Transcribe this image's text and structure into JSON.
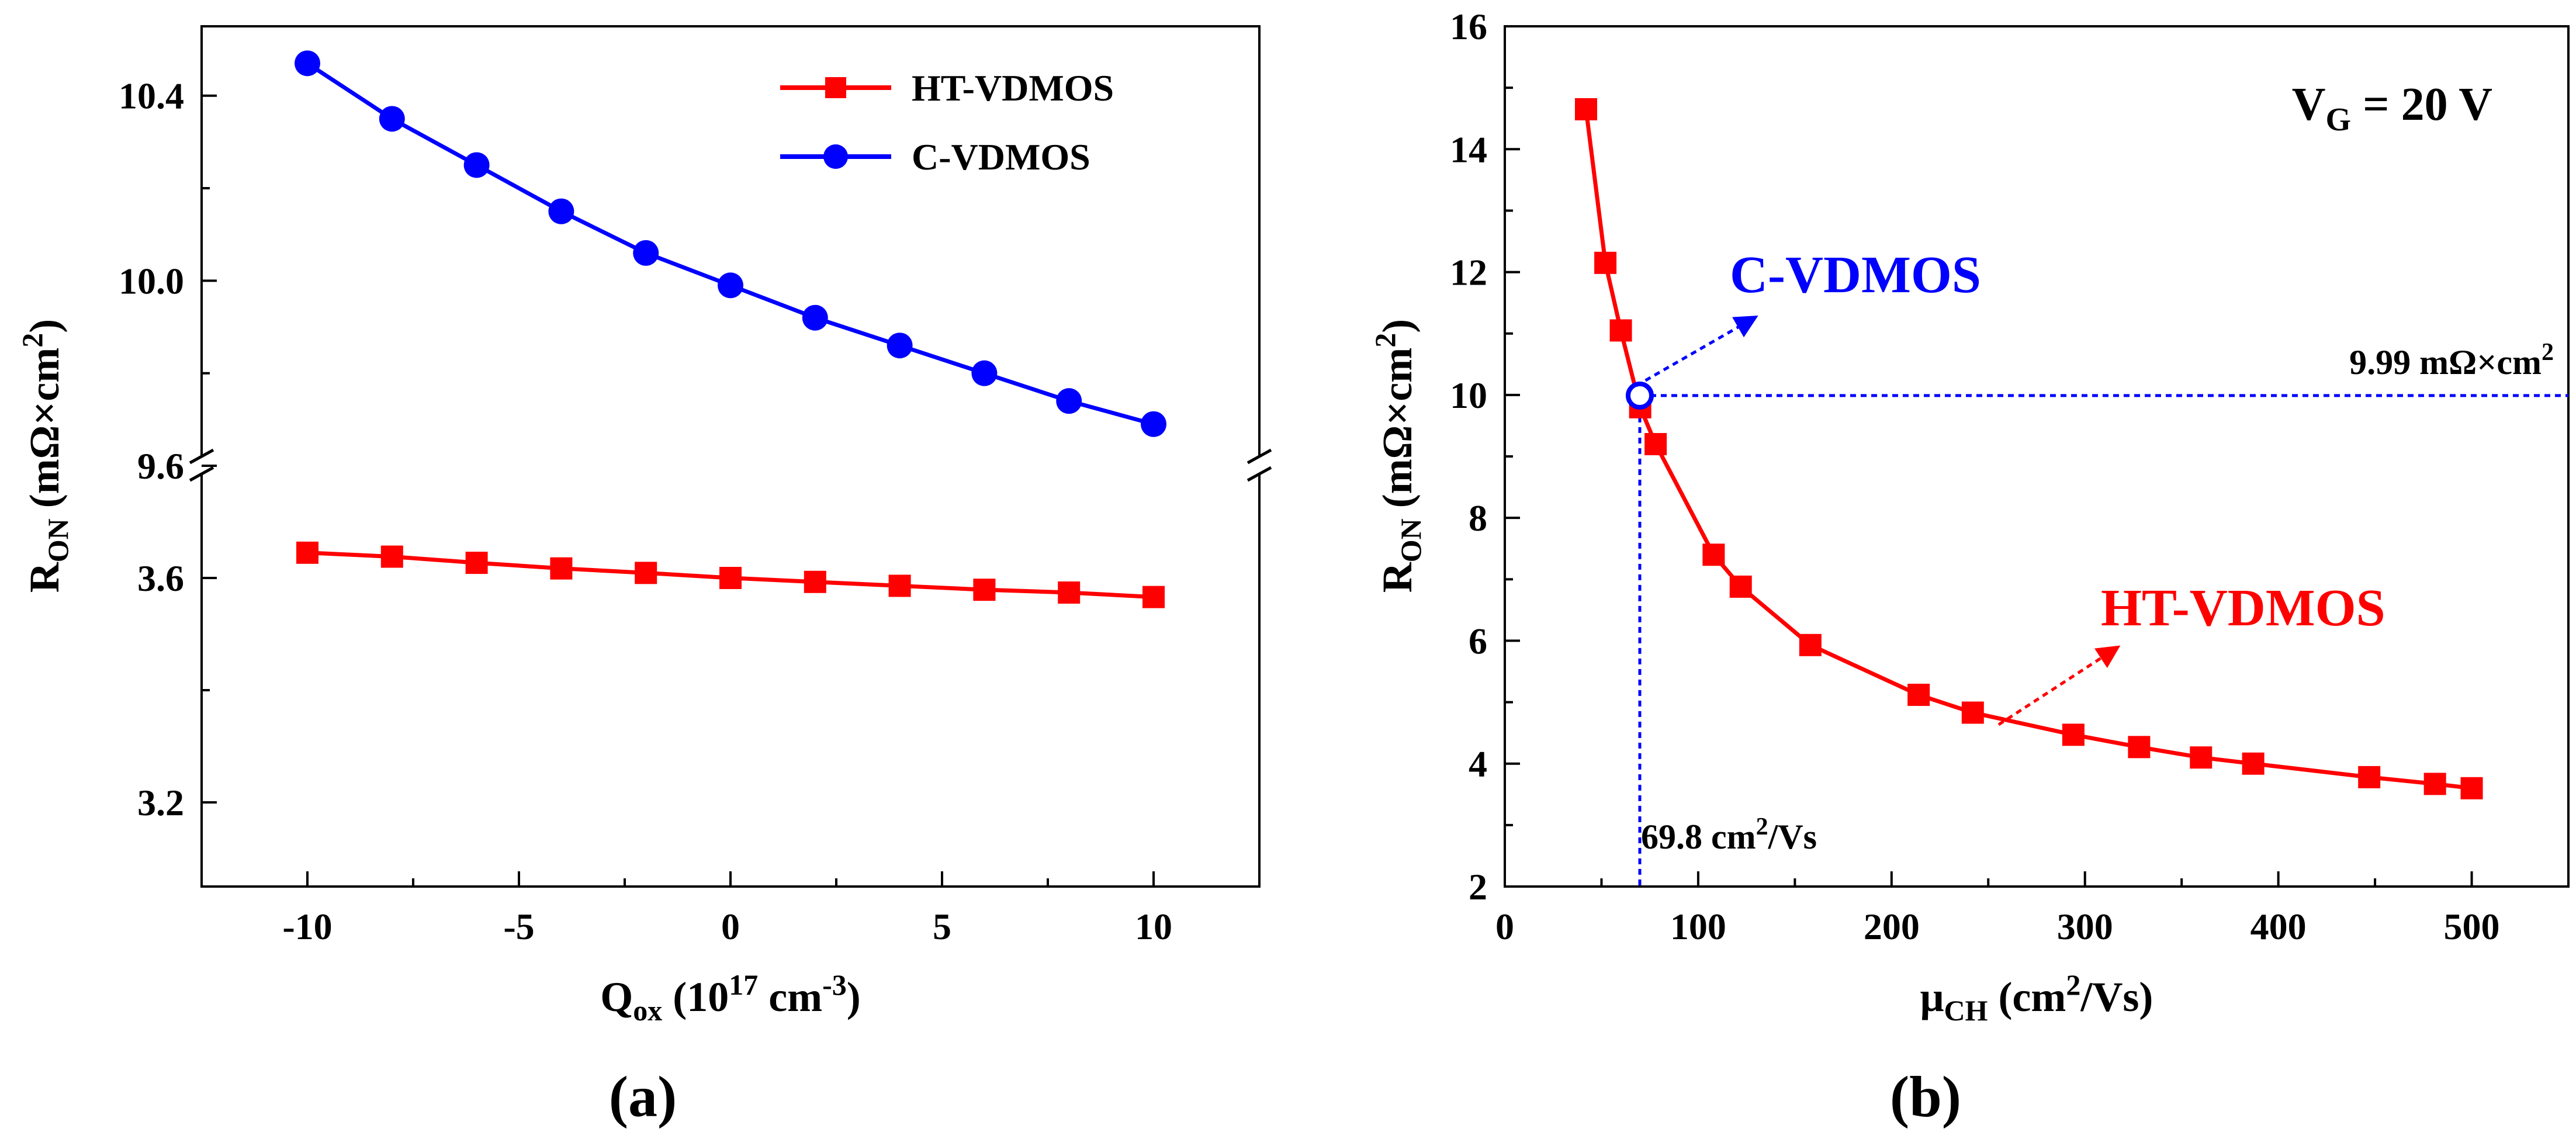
{
  "chart_data": [
    {
      "panel": "a",
      "panel_label": "(a)",
      "type": "line",
      "xlabel": {
        "main": "Q",
        "sub": "ox",
        "rest_a": " (10",
        "sup": "17",
        "rest_b": " cm",
        "sup2": "-3",
        "rest_c": ")"
      },
      "ylabel": {
        "main": "R",
        "sub": "ON",
        "rest_a": " (mΩ×cm",
        "sup": "2",
        "rest_b": ")"
      },
      "xlim": [
        -12.5,
        12.5
      ],
      "x_ticks": [
        "-10",
        "-5",
        "0",
        "5",
        "10"
      ],
      "x_tick_values": [
        -10,
        -5,
        0,
        5,
        10
      ],
      "axis_break": true,
      "upper_ylim": [
        9.6,
        10.55
      ],
      "lower_ylim": [
        3.05,
        3.8
      ],
      "y_ticks_upper": [
        "10.4",
        "10.0",
        "9.6"
      ],
      "y_tick_values_upper": [
        10.4,
        10.0,
        9.6
      ],
      "y_ticks_lower": [
        "3.6",
        "3.2"
      ],
      "y_tick_values_lower": [
        3.6,
        3.2
      ],
      "legend_position": "top-right",
      "series": [
        {
          "name": "HT-VDMOS",
          "color": "#ff0000",
          "marker": "square",
          "segment": "lower",
          "x": [
            -10,
            -8,
            -6,
            -4,
            -2,
            0,
            2,
            4,
            6,
            8,
            10
          ],
          "y": [
            3.645,
            3.638,
            3.627,
            3.617,
            3.609,
            3.6,
            3.593,
            3.586,
            3.579,
            3.574,
            3.566
          ]
        },
        {
          "name": "C-VDMOS",
          "color": "#0000ff",
          "marker": "circle",
          "segment": "upper",
          "x": [
            -10,
            -8,
            -6,
            -4,
            -2,
            0,
            2,
            4,
            6,
            8,
            10
          ],
          "y": [
            10.47,
            10.35,
            10.25,
            10.15,
            10.06,
            9.99,
            9.92,
            9.86,
            9.8,
            9.74,
            9.69
          ]
        }
      ]
    },
    {
      "panel": "b",
      "panel_label": "(b)",
      "type": "line",
      "xlabel": {
        "main": "μ",
        "sub": "CH",
        "rest_a": " (cm",
        "sup": "2",
        "rest_b": "/Vs)"
      },
      "ylabel": {
        "main": "R",
        "sub": "ON",
        "rest_a": " (mΩ×cm",
        "sup": "2",
        "rest_b": ")"
      },
      "xlim": [
        0,
        550
      ],
      "ylim": [
        2,
        16
      ],
      "x_ticks": [
        "0",
        "100",
        "200",
        "300",
        "400",
        "500"
      ],
      "x_tick_values": [
        0,
        100,
        200,
        300,
        400,
        500
      ],
      "y_ticks": [
        "2",
        "4",
        "6",
        "8",
        "10",
        "12",
        "14",
        "16"
      ],
      "y_tick_values": [
        2,
        4,
        6,
        8,
        10,
        12,
        14,
        16
      ],
      "condition": {
        "main": "V",
        "sub": "G",
        "rest": " = 20 V"
      },
      "series": [
        {
          "name": "HT-VDMOS",
          "color": "#ff0000",
          "marker": "square",
          "x": [
            42,
            52,
            60,
            70,
            78,
            108,
            122,
            158,
            214,
            242,
            294,
            328,
            360,
            387,
            447,
            481,
            500
          ],
          "y": [
            14.65,
            12.15,
            11.05,
            9.8,
            9.2,
            7.4,
            6.88,
            5.93,
            5.12,
            4.83,
            4.47,
            4.27,
            4.1,
            4.0,
            3.78,
            3.67,
            3.6
          ]
        }
      ],
      "c_vdmos_point": {
        "x": 69.8,
        "y": 9.99,
        "color": "#0000ff",
        "marker": "open-circle"
      },
      "annotations": {
        "c_label": "C-VDMOS",
        "ht_label": "HT-VDMOS",
        "h_ref": {
          "value": "9.99 mΩ×cm",
          "sup": "2"
        },
        "v_ref": {
          "value": "69.8 cm",
          "sup": "2",
          "rest": "/Vs"
        }
      }
    }
  ]
}
